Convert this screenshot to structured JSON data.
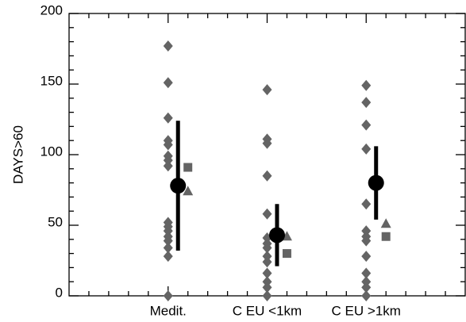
{
  "chart_data": {
    "type": "scatter",
    "y_label": "DAYS>60",
    "xlim": [
      0,
      4
    ],
    "xticks": [
      {
        "value": 1,
        "label": "Medit."
      },
      {
        "value": 2,
        "label": "C EU <1km"
      },
      {
        "value": 3,
        "label": "C EU >1km"
      }
    ],
    "xticks_minor": [
      0.2,
      0.4,
      0.6,
      0.8,
      1.2,
      1.4,
      1.6,
      1.8,
      2.2,
      2.4,
      2.6,
      2.8,
      3.2,
      3.4,
      3.6,
      3.8
    ],
    "ylim": [
      0,
      200
    ],
    "yticks": [
      0,
      50,
      100,
      150,
      200
    ],
    "yticks_minor": [
      10,
      20,
      30,
      40,
      60,
      70,
      80,
      90,
      110,
      120,
      130,
      140,
      160,
      170,
      180,
      190
    ],
    "series": [
      {
        "marker": "diamond",
        "color": "#646464",
        "x": [
          1,
          1,
          1,
          1,
          1,
          1,
          1,
          1,
          1,
          1,
          1,
          1,
          1,
          1,
          1,
          1,
          2,
          2,
          2,
          2,
          2,
          2,
          2,
          2,
          2,
          2,
          2,
          2,
          2,
          2,
          3,
          3,
          3,
          3,
          3,
          3,
          3,
          3,
          3,
          3,
          3,
          3,
          3
        ],
        "values": [
          177,
          151,
          126,
          110,
          107,
          99,
          96,
          92,
          52,
          49,
          46,
          42,
          39,
          34,
          28,
          0,
          146,
          111,
          108,
          85,
          58,
          41,
          37,
          34,
          28,
          24,
          16,
          10,
          6,
          0,
          149,
          137,
          121,
          104,
          65,
          46,
          42,
          39,
          28,
          16,
          10,
          6,
          0
        ]
      },
      {
        "marker": "square",
        "color": "#646464",
        "x": [
          1.2,
          2.2,
          3.2
        ],
        "values": [
          91,
          30,
          42
        ]
      },
      {
        "marker": "triangle",
        "color": "#646464",
        "x": [
          1.2,
          2.2,
          3.2
        ],
        "values": [
          74,
          42,
          51
        ]
      },
      {
        "marker": "circle",
        "color": "#000000",
        "x": [
          1.1,
          2.1,
          3.1
        ],
        "values": [
          78,
          43,
          80
        ],
        "errors": [
          46,
          22,
          26
        ]
      }
    ]
  }
}
